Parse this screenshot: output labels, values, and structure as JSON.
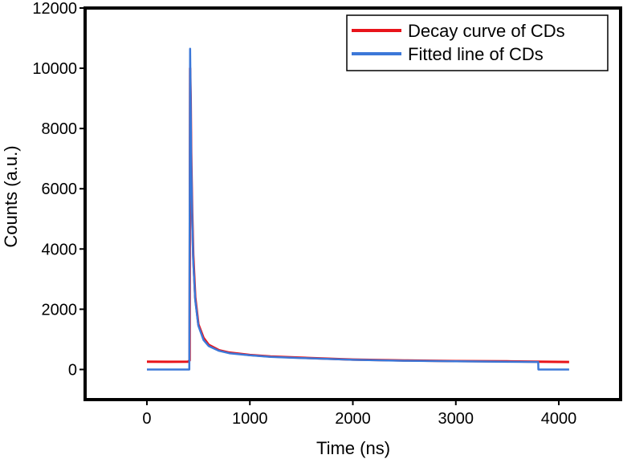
{
  "chart_data": {
    "type": "line",
    "title": "",
    "xlabel": "Time (ns)",
    "ylabel": "Counts (a.u.)",
    "xlim": [
      -600,
      4600
    ],
    "ylim": [
      -1000,
      12000
    ],
    "xticks": [
      0,
      1000,
      2000,
      3000,
      4000
    ],
    "xtick_labels": [
      "0",
      "1000",
      "2000",
      "3000",
      "4000"
    ],
    "yticks": [
      0,
      2000,
      4000,
      6000,
      8000,
      10000,
      12000
    ],
    "ytick_labels": [
      "0",
      "2000",
      "4000",
      "6000",
      "8000",
      "10000",
      "12000"
    ],
    "grid": false,
    "legend_position": "top-right",
    "series": [
      {
        "name": "Decay curve of CDs",
        "color": "#e8141b",
        "x": [
          0,
          200,
          400,
          415,
          420,
          425,
          430,
          440,
          450,
          470,
          500,
          550,
          600,
          700,
          800,
          1000,
          1200,
          1500,
          2000,
          2500,
          3000,
          3500,
          3800,
          3900,
          4100
        ],
        "y": [
          260,
          255,
          260,
          300,
          10000,
          9000,
          7200,
          5200,
          3800,
          2400,
          1500,
          1050,
          820,
          640,
          560,
          480,
          430,
          390,
          330,
          300,
          280,
          270,
          260,
          255,
          250
        ]
      },
      {
        "name": "Fitted line of CDs",
        "color": "#3c78d8",
        "x": [
          0,
          410,
          412,
          420,
          425,
          430,
          440,
          450,
          470,
          500,
          550,
          600,
          700,
          800,
          1000,
          1200,
          1500,
          2000,
          2500,
          3000,
          3500,
          3800,
          3802,
          4100
        ],
        "y": [
          0,
          0,
          0,
          10650,
          8800,
          7000,
          5000,
          3600,
          2300,
          1450,
          980,
          780,
          620,
          540,
          470,
          420,
          380,
          320,
          290,
          270,
          255,
          250,
          0,
          0
        ]
      }
    ]
  }
}
